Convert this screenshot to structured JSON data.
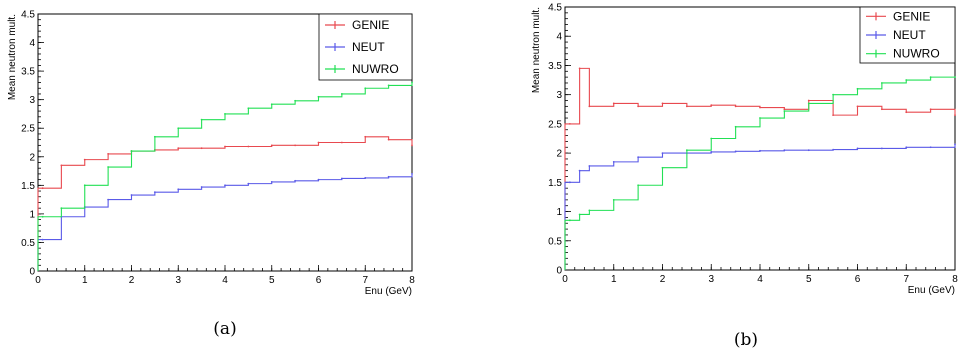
{
  "chart_data": [
    {
      "type": "line",
      "panel_caption": "(a)",
      "xlabel": "Enu (GeV)",
      "ylabel": "Mean neutron mult.",
      "xlim": [
        0,
        8
      ],
      "ylim": [
        0,
        4.5
      ],
      "x_ticks": [
        0,
        1,
        2,
        3,
        4,
        5,
        6,
        7,
        8
      ],
      "y_ticks": [
        0,
        0.5,
        1,
        1.5,
        2,
        2.5,
        3,
        3.5,
        4,
        4.5
      ],
      "x": [
        0.1,
        0.5,
        1,
        1.5,
        2,
        2.5,
        3,
        3.5,
        4,
        4.5,
        5,
        5.5,
        6,
        6.5,
        7,
        7.5,
        8
      ],
      "legend_position": "top-right",
      "colors": {
        "GENIE": "#e8494f",
        "NEUT": "#5a5ae8",
        "NUWRO": "#22e055"
      },
      "series": [
        {
          "name": "GENIE",
          "values": [
            1.45,
            1.85,
            1.95,
            2.05,
            2.1,
            2.12,
            2.15,
            2.15,
            2.18,
            2.18,
            2.2,
            2.2,
            2.25,
            2.25,
            2.35,
            2.3,
            2.2
          ]
        },
        {
          "name": "NEUT",
          "values": [
            0.55,
            0.95,
            1.12,
            1.25,
            1.33,
            1.38,
            1.43,
            1.47,
            1.5,
            1.53,
            1.56,
            1.58,
            1.6,
            1.62,
            1.63,
            1.65,
            1.7
          ]
        },
        {
          "name": "NUWRO",
          "values": [
            0.95,
            1.1,
            1.5,
            1.82,
            2.1,
            2.35,
            2.5,
            2.65,
            2.75,
            2.85,
            2.92,
            2.98,
            3.05,
            3.1,
            3.2,
            3.25,
            3.3
          ]
        }
      ]
    },
    {
      "type": "line",
      "panel_caption": "(b)",
      "xlabel": "Enu (GeV)",
      "ylabel": "Mean neutron mult.",
      "xlim": [
        0,
        8
      ],
      "ylim": [
        0,
        4.5
      ],
      "x_ticks": [
        0,
        1,
        2,
        3,
        4,
        5,
        6,
        7,
        8
      ],
      "y_ticks": [
        0,
        0.5,
        1,
        1.5,
        2,
        2.5,
        3,
        3.5,
        4,
        4.5
      ],
      "x": [
        0.1,
        0.3,
        0.5,
        1,
        1.5,
        2,
        2.5,
        3,
        3.5,
        4,
        4.5,
        5,
        5.5,
        6,
        6.5,
        7,
        7.5,
        8
      ],
      "legend_position": "top-right",
      "colors": {
        "GENIE": "#e8494f",
        "NEUT": "#5a5ae8",
        "NUWRO": "#22e055"
      },
      "series": [
        {
          "name": "GENIE",
          "values": [
            2.5,
            3.45,
            2.8,
            2.85,
            2.8,
            2.85,
            2.8,
            2.82,
            2.8,
            2.78,
            2.75,
            2.9,
            2.65,
            2.8,
            2.75,
            2.7,
            2.75,
            2.65
          ]
        },
        {
          "name": "NEUT",
          "values": [
            1.5,
            1.7,
            1.78,
            1.85,
            1.93,
            2.0,
            2.0,
            2.02,
            2.03,
            2.04,
            2.05,
            2.05,
            2.06,
            2.08,
            2.08,
            2.1,
            2.1,
            2.15
          ]
        },
        {
          "name": "NUWRO",
          "values": [
            0.85,
            0.95,
            1.02,
            1.2,
            1.45,
            1.75,
            2.05,
            2.25,
            2.45,
            2.6,
            2.72,
            2.85,
            3.0,
            3.1,
            3.2,
            3.25,
            3.3,
            3.3
          ]
        }
      ]
    }
  ]
}
